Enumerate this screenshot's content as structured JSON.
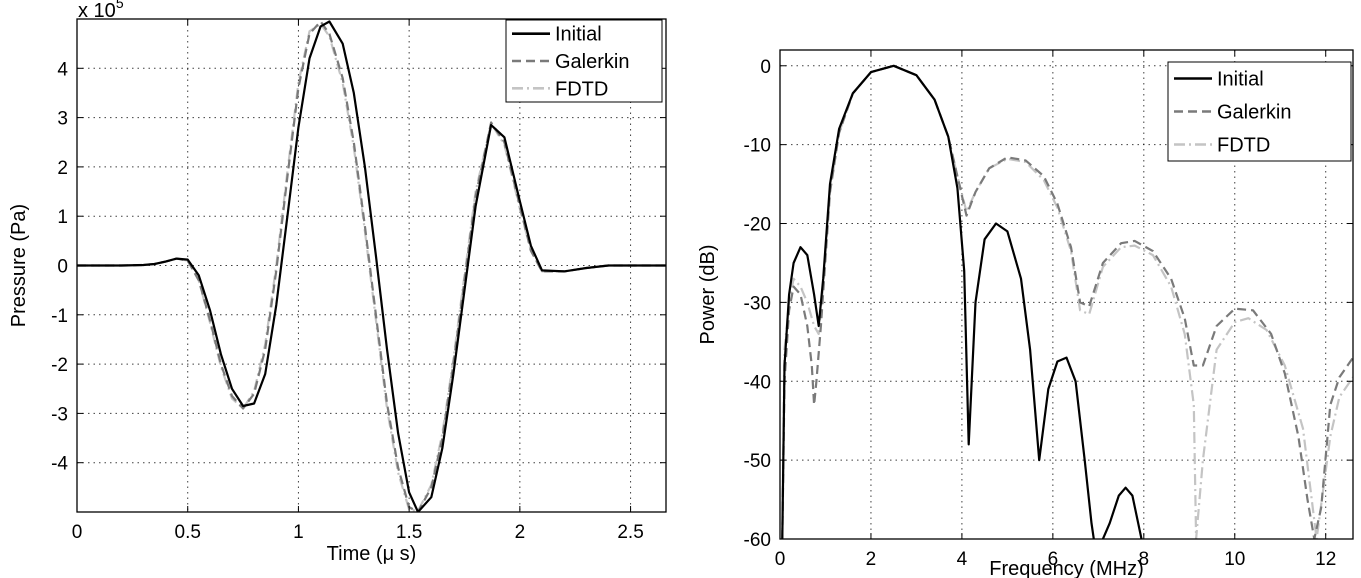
{
  "chart_data": [
    {
      "type": "line",
      "title": "",
      "xlabel": "Time (μ s)",
      "ylabel": "Pressure (Pa)",
      "y_multiplier_label": "x 10",
      "y_multiplier_exponent": "5",
      "xlim": [
        0,
        2.66
      ],
      "ylim": [
        -5,
        5
      ],
      "xticks": [
        0,
        0.5,
        1,
        1.5,
        2,
        2.5
      ],
      "xtick_labels": [
        "0",
        "0.5",
        "1",
        "1.5",
        "2",
        "2.5"
      ],
      "yticks": [
        -4,
        -3,
        -2,
        -1,
        0,
        1,
        2,
        3,
        4
      ],
      "ytick_labels": [
        "-4",
        "-3",
        "-2",
        "-1",
        "0",
        "1",
        "2",
        "3",
        "4"
      ],
      "grid": true,
      "legend": "top-right",
      "series": [
        {
          "name": "Initial",
          "color": "#000000",
          "style": "solid",
          "x": [
            0,
            0.1,
            0.2,
            0.3,
            0.35,
            0.4,
            0.45,
            0.5,
            0.55,
            0.6,
            0.65,
            0.7,
            0.75,
            0.8,
            0.85,
            0.9,
            0.95,
            1.0,
            1.05,
            1.1,
            1.14,
            1.2,
            1.25,
            1.3,
            1.35,
            1.4,
            1.45,
            1.5,
            1.54,
            1.6,
            1.65,
            1.7,
            1.75,
            1.8,
            1.87,
            1.93,
            2.0,
            2.05,
            2.1,
            2.2,
            2.3,
            2.4,
            2.5,
            2.66
          ],
          "y": [
            0,
            0,
            0,
            0.01,
            0.03,
            0.08,
            0.14,
            0.12,
            -0.2,
            -0.9,
            -1.8,
            -2.5,
            -2.85,
            -2.8,
            -2.2,
            -0.8,
            1.0,
            2.8,
            4.2,
            4.85,
            4.95,
            4.5,
            3.5,
            2.0,
            0.2,
            -1.7,
            -3.4,
            -4.6,
            -5.0,
            -4.7,
            -3.7,
            -2.2,
            -0.5,
            1.2,
            2.85,
            2.6,
            1.3,
            0.4,
            -0.1,
            -0.12,
            -0.05,
            0,
            0,
            0
          ]
        },
        {
          "name": "Galerkin",
          "color": "#7a7a7a",
          "style": "dashed",
          "x": [
            0,
            0.1,
            0.2,
            0.3,
            0.35,
            0.4,
            0.45,
            0.5,
            0.55,
            0.6,
            0.65,
            0.7,
            0.75,
            0.8,
            0.85,
            0.9,
            0.95,
            1.0,
            1.05,
            1.1,
            1.14,
            1.2,
            1.25,
            1.3,
            1.35,
            1.4,
            1.45,
            1.5,
            1.54,
            1.6,
            1.65,
            1.7,
            1.75,
            1.8,
            1.87,
            1.93,
            2.0,
            2.05,
            2.1,
            2.2,
            2.3,
            2.4,
            2.5,
            2.66
          ],
          "y": [
            0,
            0,
            0,
            0.01,
            0.03,
            0.08,
            0.14,
            0.1,
            -0.3,
            -1.1,
            -2.0,
            -2.65,
            -2.9,
            -2.6,
            -1.7,
            -0.1,
            1.8,
            3.6,
            4.7,
            4.95,
            4.7,
            3.8,
            2.5,
            0.8,
            -1.0,
            -2.8,
            -4.1,
            -4.9,
            -5.0,
            -4.5,
            -3.5,
            -2.0,
            -0.3,
            1.4,
            2.9,
            2.5,
            1.2,
            0.3,
            -0.12,
            -0.12,
            -0.05,
            0,
            0,
            0
          ]
        },
        {
          "name": "FDTD",
          "color": "#c4c4c4",
          "style": "dash-dot",
          "x": [
            0,
            0.1,
            0.2,
            0.3,
            0.35,
            0.4,
            0.45,
            0.5,
            0.55,
            0.6,
            0.65,
            0.7,
            0.75,
            0.8,
            0.85,
            0.9,
            0.95,
            1.0,
            1.05,
            1.1,
            1.14,
            1.2,
            1.25,
            1.3,
            1.35,
            1.4,
            1.45,
            1.5,
            1.54,
            1.6,
            1.65,
            1.7,
            1.75,
            1.8,
            1.87,
            1.93,
            2.0,
            2.05,
            2.1,
            2.2,
            2.3,
            2.4,
            2.5,
            2.66
          ],
          "y": [
            0,
            0,
            0,
            0.01,
            0.03,
            0.08,
            0.14,
            0.1,
            -0.3,
            -1.15,
            -2.05,
            -2.7,
            -2.9,
            -2.55,
            -1.6,
            0.0,
            1.9,
            3.7,
            4.75,
            4.9,
            4.65,
            3.7,
            2.4,
            0.7,
            -1.1,
            -2.9,
            -4.2,
            -4.95,
            -4.98,
            -4.45,
            -3.4,
            -1.9,
            -0.2,
            1.5,
            2.88,
            2.45,
            1.15,
            0.3,
            -0.12,
            -0.12,
            -0.05,
            0,
            0,
            0
          ]
        }
      ]
    },
    {
      "type": "line",
      "title": "",
      "xlabel": "Frequency (MHz)",
      "ylabel": "Power (dB)",
      "xlim": [
        0,
        12.6
      ],
      "ylim": [
        -60,
        2
      ],
      "xticks": [
        0,
        2,
        4,
        6,
        8,
        10,
        12
      ],
      "xtick_labels": [
        "0",
        "2",
        "4",
        "6",
        "8",
        "10",
        "12"
      ],
      "yticks": [
        -60,
        -50,
        -40,
        -30,
        -20,
        -10,
        0
      ],
      "ytick_labels": [
        "-60",
        "-50",
        "-40",
        "-30",
        "-20",
        "-10",
        "0"
      ],
      "grid": true,
      "legend": "top-right",
      "series": [
        {
          "name": "Initial",
          "color": "#000000",
          "style": "solid",
          "x": [
            0.05,
            0.1,
            0.2,
            0.3,
            0.45,
            0.6,
            0.75,
            0.85,
            0.95,
            1.1,
            1.3,
            1.6,
            2.0,
            2.5,
            3.0,
            3.4,
            3.7,
            3.9,
            4.05,
            4.15,
            4.3,
            4.5,
            4.75,
            5.0,
            5.3,
            5.5,
            5.7,
            5.9,
            6.1,
            6.3,
            6.5,
            6.7,
            6.85,
            6.95,
            7.25,
            7.45,
            7.6,
            7.75,
            7.95,
            8.05
          ],
          "y": [
            -60,
            -38,
            -29,
            -25,
            -23,
            -24,
            -29,
            -33,
            -27,
            -15,
            -8,
            -3.5,
            -0.8,
            0,
            -1.2,
            -4.3,
            -9,
            -15.5,
            -26,
            -48,
            -30,
            -22,
            -20,
            -21,
            -27,
            -36,
            -50,
            -41,
            -37.5,
            -37,
            -40,
            -50,
            -58,
            -62,
            -58,
            -54.5,
            -53.5,
            -54.5,
            -60,
            -62
          ]
        },
        {
          "name": "Galerkin",
          "color": "#7a7a7a",
          "style": "dashed",
          "x": [
            0.05,
            0.1,
            0.2,
            0.3,
            0.45,
            0.6,
            0.7,
            0.75,
            0.8,
            0.9,
            1.1,
            1.3,
            1.6,
            2.0,
            2.5,
            3.0,
            3.4,
            3.7,
            3.9,
            4.1,
            4.3,
            4.6,
            5.0,
            5.4,
            5.8,
            6.1,
            6.4,
            6.6,
            6.8,
            7.1,
            7.5,
            7.8,
            8.2,
            8.6,
            8.9,
            9.1,
            9.3,
            9.6,
            10.0,
            10.4,
            10.8,
            11.1,
            11.4,
            11.6,
            11.75,
            11.9,
            12.1,
            12.3,
            12.6
          ],
          "y": [
            -60,
            -40,
            -31,
            -28,
            -29,
            -33,
            -38,
            -43,
            -40,
            -33,
            -16,
            -8.5,
            -3.5,
            -0.8,
            0,
            -1.2,
            -4.3,
            -9,
            -14,
            -19,
            -16,
            -13,
            -11.6,
            -12,
            -14,
            -17.5,
            -23,
            -30,
            -30.5,
            -25,
            -22.5,
            -22.2,
            -23.5,
            -27,
            -32,
            -38,
            -38,
            -33,
            -30.8,
            -31,
            -34,
            -39,
            -47,
            -55,
            -60,
            -56,
            -43,
            -39.5,
            -37
          ]
        },
        {
          "name": "FDTD",
          "color": "#c4c4c4",
          "style": "dash-dot",
          "x": [
            0.05,
            0.1,
            0.2,
            0.3,
            0.45,
            0.6,
            0.75,
            0.85,
            0.95,
            1.1,
            1.3,
            1.6,
            2.0,
            2.5,
            3.0,
            3.4,
            3.7,
            3.9,
            4.1,
            4.3,
            4.6,
            5.0,
            5.4,
            5.8,
            6.1,
            6.4,
            6.6,
            6.8,
            7.1,
            7.5,
            7.8,
            8.2,
            8.6,
            8.9,
            9.1,
            9.15,
            9.3,
            9.6,
            10.0,
            10.3,
            10.7,
            11.1,
            11.5,
            11.8,
            12.1,
            12.3,
            12.6
          ],
          "y": [
            -60,
            -36,
            -30,
            -27,
            -28,
            -30,
            -33,
            -34,
            -28,
            -16,
            -8.5,
            -3.5,
            -0.8,
            0,
            -1.2,
            -4.3,
            -9,
            -14,
            -18.5,
            -16,
            -13,
            -11.8,
            -12.2,
            -14.5,
            -18,
            -23.5,
            -31,
            -31.5,
            -25.5,
            -23,
            -22.8,
            -24,
            -28,
            -34,
            -43,
            -60,
            -50,
            -36,
            -32.5,
            -32,
            -33.5,
            -38,
            -46,
            -60,
            -47,
            -42,
            -39.5
          ]
        }
      ]
    }
  ]
}
